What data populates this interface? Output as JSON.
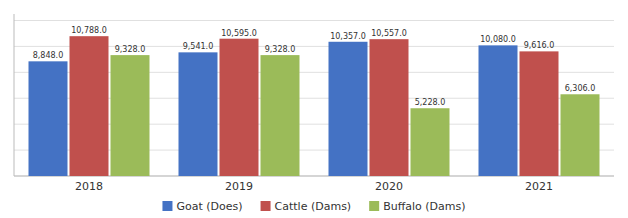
{
  "chart_data": {
    "type": "bar",
    "categories": [
      "2018",
      "2019",
      "2020",
      "2021"
    ],
    "series": [
      {
        "name": "Goat (Does)",
        "color": "#4472C4",
        "values": [
          8848.0,
          9541.0,
          10357.0,
          10080.0
        ],
        "value_labels": [
          "8,848.0",
          "9,541.0",
          "10,357.0",
          "10,080.0"
        ]
      },
      {
        "name": "Cattle (Dams)",
        "color": "#C0504D",
        "values": [
          10788.0,
          10595.0,
          10557.0,
          9616.0
        ],
        "value_labels": [
          "10,788.0",
          "10,595.0",
          "10,557.0",
          "9,616.0"
        ]
      },
      {
        "name": "Buffalo (Dams)",
        "color": "#9BBB59",
        "values": [
          9328.0,
          9328.0,
          5228.0,
          6306.0
        ],
        "value_labels": [
          "9,328.0",
          "9,328.0",
          "5,228.0",
          "6,306.0"
        ]
      }
    ],
    "ylim": [
      0,
      12500
    ],
    "yticks": [
      0,
      2000,
      4000,
      6000,
      8000,
      10000,
      12000
    ],
    "grid": true,
    "legend": "bottom",
    "data_labels": true,
    "tick_labels": "x"
  }
}
